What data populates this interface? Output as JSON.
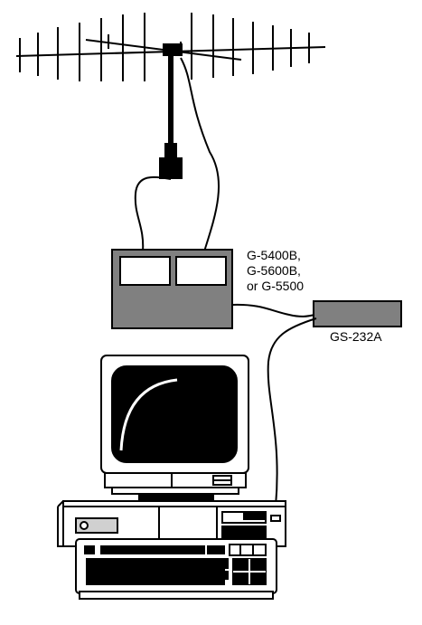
{
  "labels": {
    "controller_line1": "G-5400B,",
    "controller_line2": "G-5600B,",
    "controller_line3": "or G-5500",
    "interface": "GS-232A"
  },
  "colors": {
    "line": "#000000",
    "box_fill": "#808080",
    "panel_fill": "#ffffff",
    "screen_fill": "#000000",
    "computer_fill": "#ffffff",
    "keyboard_keys": "#000000"
  },
  "icons": {
    "antenna": "yagi-antenna-icon",
    "connector": "coax-connector-icon",
    "controller": "rotator-controller-box",
    "interface": "interface-box",
    "computer": "desktop-computer-icon"
  }
}
